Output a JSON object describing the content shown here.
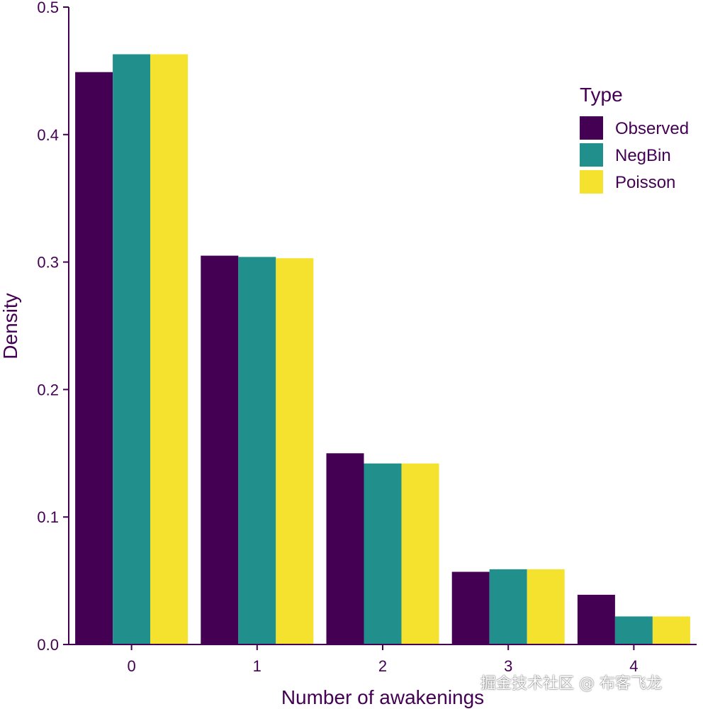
{
  "chart_data": {
    "type": "bar",
    "title": "",
    "xlabel": "Number of awakenings",
    "ylabel": "Density",
    "categories": [
      "0",
      "1",
      "2",
      "3",
      "4"
    ],
    "ylim": [
      0,
      0.5
    ],
    "yticks": [
      "0.0",
      "0.1",
      "0.2",
      "0.3",
      "0.4",
      "0.5"
    ],
    "ytick_values": [
      0,
      0.1,
      0.2,
      0.3,
      0.4,
      0.5
    ],
    "legend_title": "Type",
    "legend_position": "top-right",
    "grid": false,
    "series": [
      {
        "name": "Observed",
        "color": "#440154",
        "values": [
          0.449,
          0.305,
          0.15,
          0.057,
          0.039
        ]
      },
      {
        "name": "NegBin",
        "color": "#21908C",
        "values": [
          0.463,
          0.304,
          0.142,
          0.059,
          0.022
        ]
      },
      {
        "name": "Poisson",
        "color": "#F4E22F",
        "values": [
          0.463,
          0.303,
          0.142,
          0.059,
          0.022
        ]
      }
    ],
    "text_color": "#440154"
  },
  "watermark": "掘金技术社区 @ 布客飞龙"
}
